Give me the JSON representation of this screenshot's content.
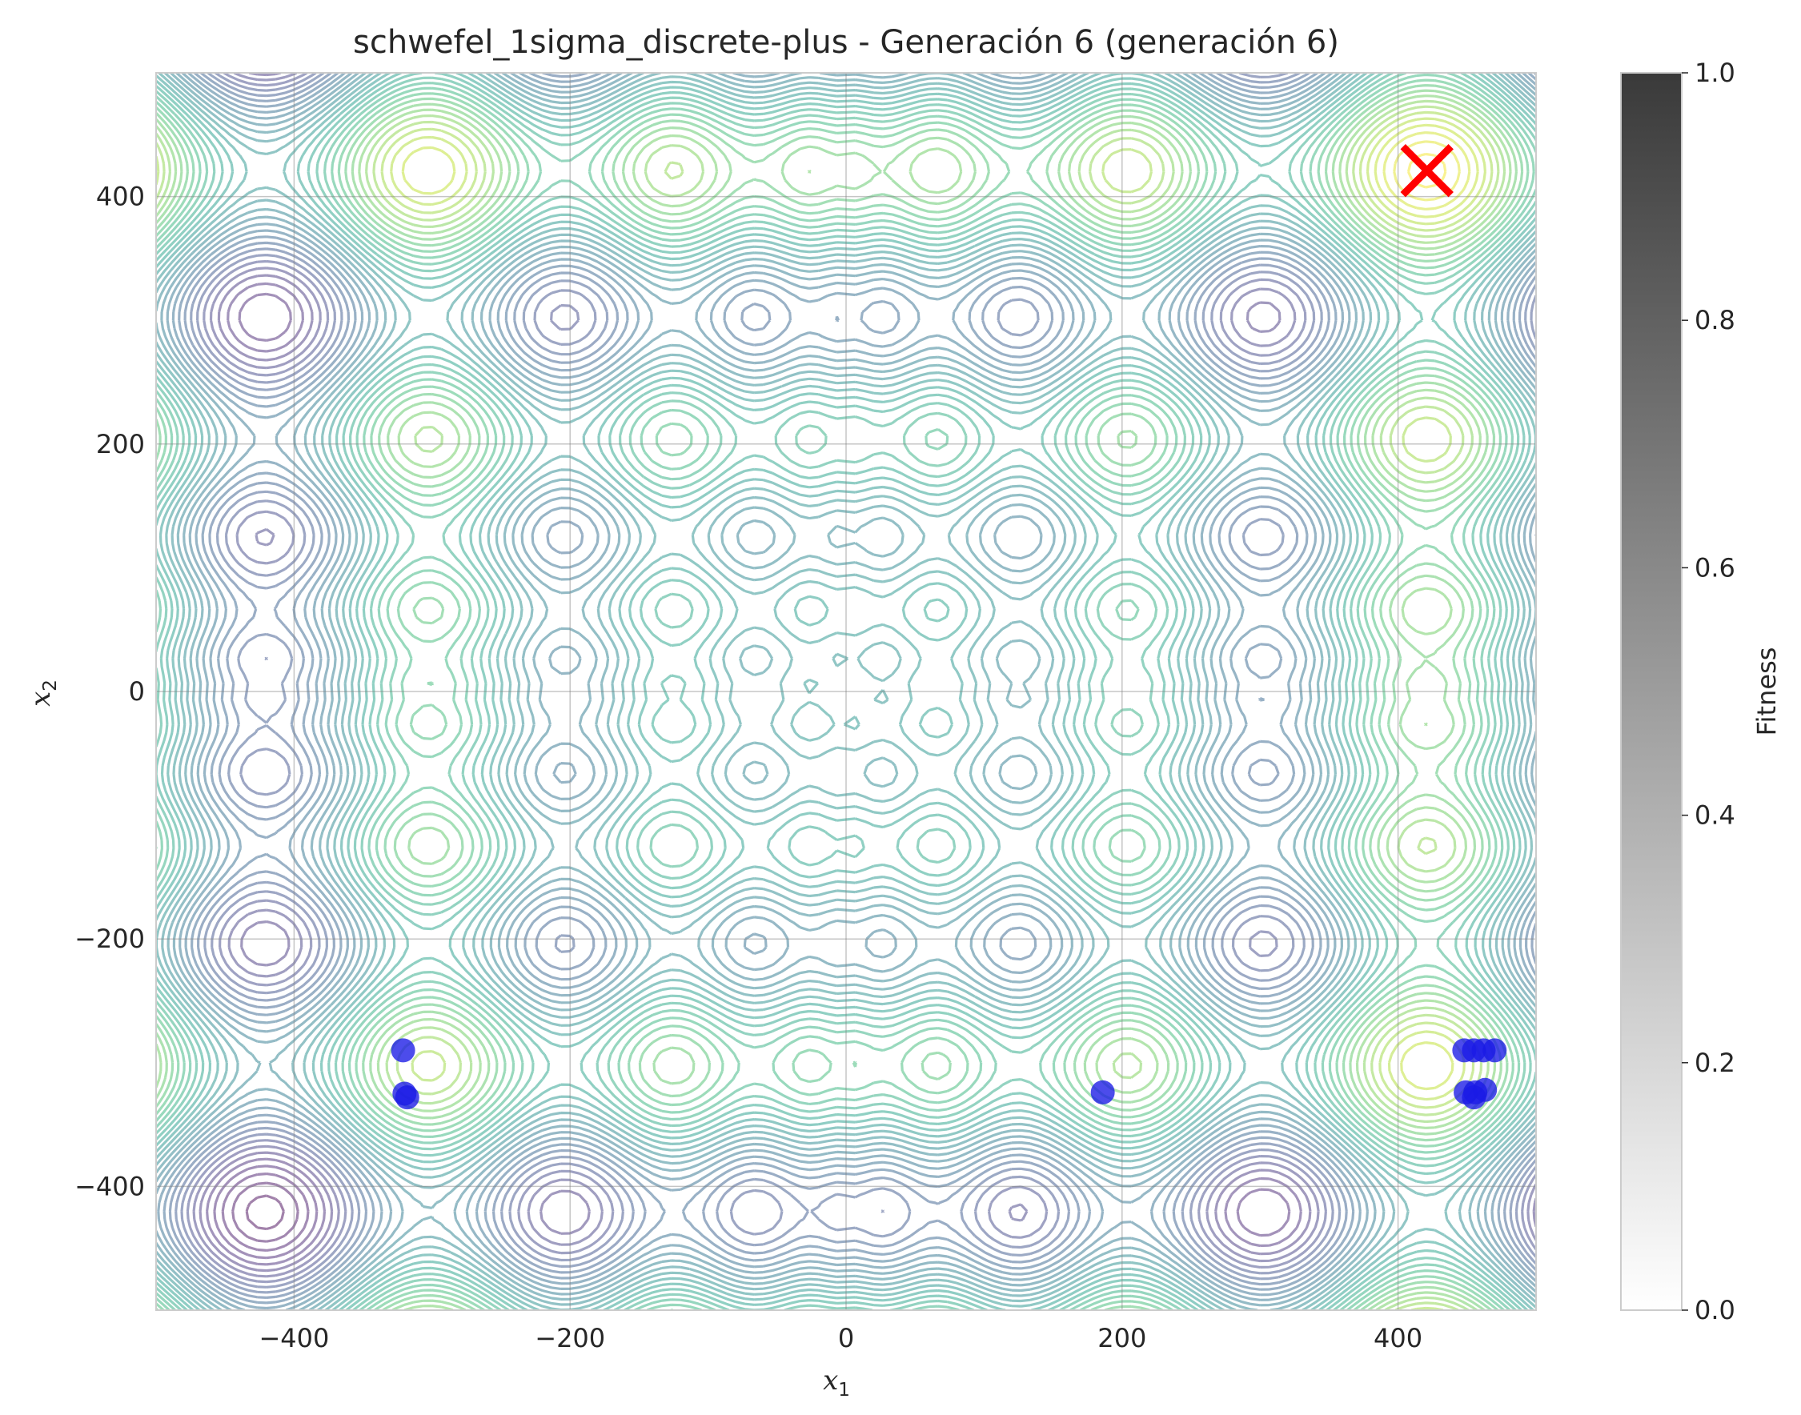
{
  "chart_data": {
    "type": "contour-scatter",
    "title": "schwefel_1sigma_discrete-plus - Generación 6 (generación 6)",
    "xlabel": "x",
    "xlabel_sub": "1",
    "ylabel": "x",
    "ylabel_sub": "2",
    "xlim": [
      -500,
      500
    ],
    "ylim": [
      -500,
      500
    ],
    "xticks": [
      -400,
      -200,
      0,
      200,
      400
    ],
    "yticks": [
      -400,
      -200,
      0,
      200,
      400
    ],
    "xtick_labels": [
      "−400",
      "−200",
      "0",
      "200",
      "400"
    ],
    "ytick_labels": [
      "−400",
      "−200",
      "0",
      "200",
      "400"
    ],
    "grid": true,
    "background_function": "schwefel",
    "contour_colormap": "viridis",
    "colorbar": {
      "label": "Fitness",
      "range": [
        0,
        1
      ],
      "ticks": [
        0,
        0.2,
        0.4,
        0.6,
        0.8,
        1.0
      ],
      "tick_labels": [
        "0.0",
        "0.2",
        "0.4",
        "0.6",
        "0.8",
        "1.0"
      ],
      "color_low": "#ffffff",
      "color_high": "#3a3a3a"
    },
    "optimum": {
      "x": 420.97,
      "y": 420.97,
      "marker": "x",
      "color": "#ff0000"
    },
    "population": {
      "color": "#1a1ae6",
      "points": [
        {
          "x": -321,
          "y": -290
        },
        {
          "x": -320,
          "y": -325
        },
        {
          "x": -318,
          "y": -328
        },
        {
          "x": 186,
          "y": -324
        },
        {
          "x": 448,
          "y": -290
        },
        {
          "x": 455,
          "y": -290
        },
        {
          "x": 462,
          "y": -290
        },
        {
          "x": 470,
          "y": -290
        },
        {
          "x": 449,
          "y": -324
        },
        {
          "x": 456,
          "y": -324
        },
        {
          "x": 463,
          "y": -322
        },
        {
          "x": 455,
          "y": -328
        }
      ]
    }
  }
}
